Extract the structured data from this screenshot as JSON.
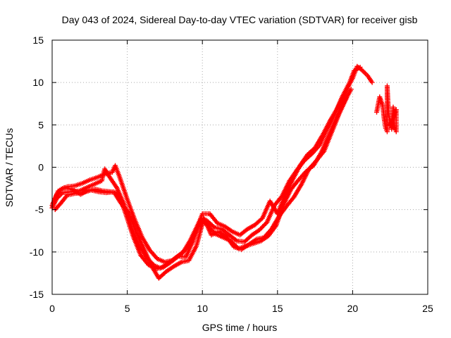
{
  "chart_data": {
    "type": "scatter",
    "title": "Day 043 of 2024, Sidereal Day-to-day VTEC variation (SDTVAR) for receiver gisb",
    "xlabel": "GPS time / hours",
    "ylabel": "SDTVAR / TECUs",
    "xlim": [
      0,
      25
    ],
    "ylim": [
      -15,
      15
    ],
    "xticks": [
      0,
      5,
      10,
      15,
      20,
      25
    ],
    "yticks": [
      -15,
      -10,
      -5,
      0,
      5,
      10,
      15
    ],
    "xtick_labels": [
      "0",
      "5",
      "10",
      "15",
      "20",
      "25"
    ],
    "ytick_labels": [
      "-15",
      "-10",
      "-5",
      "0",
      "5",
      "10",
      "15"
    ],
    "grid": true,
    "marker": "+",
    "color": "#ff0000",
    "series": [
      {
        "name": "track-1",
        "points": [
          [
            0.0,
            -4.5
          ],
          [
            0.3,
            -3.2
          ],
          [
            0.6,
            -2.6
          ],
          [
            1.0,
            -2.3
          ],
          [
            1.5,
            -2.2
          ],
          [
            2.0,
            -1.9
          ],
          [
            2.5,
            -1.5
          ],
          [
            3.0,
            -1.2
          ],
          [
            3.5,
            -0.8
          ],
          [
            4.0,
            -0.6
          ],
          [
            4.2,
            0.2
          ],
          [
            4.5,
            -1.2
          ],
          [
            5.0,
            -3.8
          ],
          [
            5.5,
            -6.2
          ],
          [
            6.0,
            -8.3
          ],
          [
            6.5,
            -9.8
          ],
          [
            7.0,
            -10.8
          ],
          [
            7.5,
            -11.2
          ],
          [
            8.0,
            -11.0
          ],
          [
            8.5,
            -10.3
          ],
          [
            9.0,
            -9.5
          ],
          [
            9.5,
            -7.8
          ],
          [
            10.0,
            -5.5
          ],
          [
            10.5,
            -5.5
          ],
          [
            11.0,
            -6.6
          ],
          [
            11.5,
            -7.0
          ],
          [
            12.0,
            -7.6
          ],
          [
            12.5,
            -8.0
          ],
          [
            13.0,
            -7.3
          ],
          [
            13.5,
            -6.8
          ],
          [
            14.0,
            -6.0
          ],
          [
            14.5,
            -4.0
          ],
          [
            15.0,
            -5.5
          ],
          [
            15.5,
            -3.3
          ],
          [
            16.0,
            -1.5
          ],
          [
            16.5,
            0.2
          ],
          [
            17.0,
            1.5
          ],
          [
            17.5,
            2.3
          ],
          [
            18.0,
            3.8
          ],
          [
            18.5,
            5.5
          ],
          [
            19.0,
            7.0
          ],
          [
            19.5,
            8.8
          ],
          [
            20.0,
            10.5
          ],
          [
            20.3,
            11.9
          ],
          [
            20.6,
            11.5
          ],
          [
            21.0,
            10.8
          ],
          [
            21.3,
            10.0
          ]
        ]
      },
      {
        "name": "track-2",
        "points": [
          [
            0.0,
            -4.8
          ],
          [
            0.3,
            -3.7
          ],
          [
            0.7,
            -3.0
          ],
          [
            1.2,
            -2.9
          ],
          [
            1.8,
            -2.8
          ],
          [
            2.3,
            -2.4
          ],
          [
            2.8,
            -2.0
          ],
          [
            3.3,
            -1.6
          ],
          [
            3.5,
            -0.2
          ],
          [
            3.8,
            -1.1
          ],
          [
            4.3,
            -2.4
          ],
          [
            4.8,
            -4.4
          ],
          [
            5.3,
            -7.2
          ],
          [
            5.8,
            -9.3
          ],
          [
            6.3,
            -10.7
          ],
          [
            6.8,
            -11.6
          ],
          [
            7.2,
            -11.9
          ],
          [
            7.7,
            -11.4
          ],
          [
            8.2,
            -10.7
          ],
          [
            8.7,
            -10.1
          ],
          [
            9.2,
            -8.6
          ],
          [
            9.8,
            -6.4
          ],
          [
            10.3,
            -6.3
          ],
          [
            10.8,
            -7.1
          ],
          [
            11.3,
            -7.3
          ],
          [
            11.8,
            -8.0
          ],
          [
            12.3,
            -8.7
          ],
          [
            12.8,
            -8.8
          ],
          [
            13.3,
            -8.0
          ],
          [
            13.8,
            -7.4
          ],
          [
            14.3,
            -6.5
          ],
          [
            14.8,
            -4.5
          ],
          [
            15.3,
            -3.4
          ],
          [
            15.8,
            -1.6
          ],
          [
            16.3,
            -0.3
          ],
          [
            16.8,
            0.8
          ],
          [
            17.3,
            1.6
          ],
          [
            17.8,
            2.6
          ],
          [
            18.3,
            4.5
          ],
          [
            18.8,
            6.2
          ],
          [
            19.3,
            8.3
          ],
          [
            19.8,
            10.0
          ],
          [
            20.1,
            11.4
          ],
          [
            20.5,
            11.8
          ]
        ]
      },
      {
        "name": "track-3",
        "points": [
          [
            0.1,
            -4.3
          ],
          [
            0.4,
            -2.8
          ],
          [
            0.8,
            -2.4
          ],
          [
            1.3,
            -2.6
          ],
          [
            1.9,
            -3.2
          ],
          [
            2.4,
            -2.7
          ],
          [
            2.9,
            -2.6
          ],
          [
            3.4,
            -2.8
          ],
          [
            3.9,
            -2.9
          ],
          [
            4.4,
            -3.1
          ],
          [
            4.9,
            -5.5
          ],
          [
            5.4,
            -8.2
          ],
          [
            5.9,
            -10.4
          ],
          [
            6.4,
            -11.5
          ],
          [
            6.9,
            -12.0
          ],
          [
            7.4,
            -11.8
          ],
          [
            7.9,
            -11.2
          ],
          [
            8.4,
            -10.5
          ],
          [
            8.9,
            -10.6
          ],
          [
            9.4,
            -8.6
          ],
          [
            9.9,
            -6.1
          ],
          [
            10.4,
            -7.0
          ],
          [
            10.9,
            -7.9
          ],
          [
            11.4,
            -8.3
          ],
          [
            11.9,
            -8.7
          ],
          [
            12.4,
            -9.6
          ],
          [
            12.9,
            -9.3
          ],
          [
            13.4,
            -9.0
          ],
          [
            13.9,
            -8.7
          ],
          [
            14.4,
            -8.1
          ],
          [
            14.9,
            -6.9
          ],
          [
            15.4,
            -4.4
          ],
          [
            15.9,
            -2.6
          ],
          [
            16.4,
            -1.5
          ],
          [
            16.9,
            -0.5
          ],
          [
            17.4,
            0.2
          ],
          [
            17.9,
            1.7
          ],
          [
            18.4,
            3.7
          ],
          [
            18.9,
            5.7
          ],
          [
            19.4,
            7.6
          ],
          [
            19.9,
            9.2
          ]
        ]
      },
      {
        "name": "track-4",
        "points": [
          [
            0.2,
            -5.0
          ],
          [
            0.6,
            -4.2
          ],
          [
            1.0,
            -3.3
          ],
          [
            1.5,
            -3.1
          ],
          [
            2.0,
            -3.0
          ],
          [
            2.6,
            -2.7
          ],
          [
            3.1,
            -2.9
          ],
          [
            3.6,
            -3.0
          ],
          [
            4.1,
            -2.9
          ],
          [
            4.6,
            -4.3
          ],
          [
            5.1,
            -5.4
          ],
          [
            5.6,
            -7.7
          ],
          [
            6.1,
            -9.6
          ],
          [
            6.6,
            -11.6
          ],
          [
            7.1,
            -13.1
          ],
          [
            7.6,
            -12.3
          ],
          [
            8.1,
            -11.7
          ],
          [
            8.6,
            -11.2
          ],
          [
            9.1,
            -11.0
          ],
          [
            9.6,
            -9.3
          ],
          [
            10.1,
            -6.0
          ],
          [
            10.6,
            -8.0
          ],
          [
            11.1,
            -7.6
          ],
          [
            11.6,
            -8.2
          ],
          [
            12.1,
            -9.4
          ],
          [
            12.6,
            -9.7
          ],
          [
            13.1,
            -9.1
          ],
          [
            13.6,
            -8.5
          ],
          [
            14.1,
            -8.3
          ],
          [
            14.6,
            -7.3
          ],
          [
            15.1,
            -5.8
          ],
          [
            15.6,
            -4.6
          ],
          [
            16.1,
            -3.5
          ],
          [
            16.6,
            -2.0
          ],
          [
            17.1,
            -0.2
          ],
          [
            17.6,
            0.8
          ],
          [
            18.1,
            1.9
          ],
          [
            18.6,
            4.1
          ],
          [
            19.1,
            6.3
          ],
          [
            19.6,
            8.2
          ]
        ]
      },
      {
        "name": "late-scatter",
        "points": [
          [
            21.6,
            6.5
          ],
          [
            21.8,
            8.3
          ],
          [
            22.0,
            7.3
          ],
          [
            22.1,
            5.7
          ],
          [
            22.2,
            4.6
          ],
          [
            22.3,
            4.2
          ],
          [
            22.3,
            9.6
          ],
          [
            22.4,
            6.2
          ],
          [
            22.6,
            4.5
          ],
          [
            22.7,
            7.1
          ],
          [
            22.8,
            4.6
          ],
          [
            22.9,
            4.2
          ],
          [
            22.9,
            6.8
          ],
          [
            22.5,
            5.0
          ]
        ]
      }
    ]
  }
}
